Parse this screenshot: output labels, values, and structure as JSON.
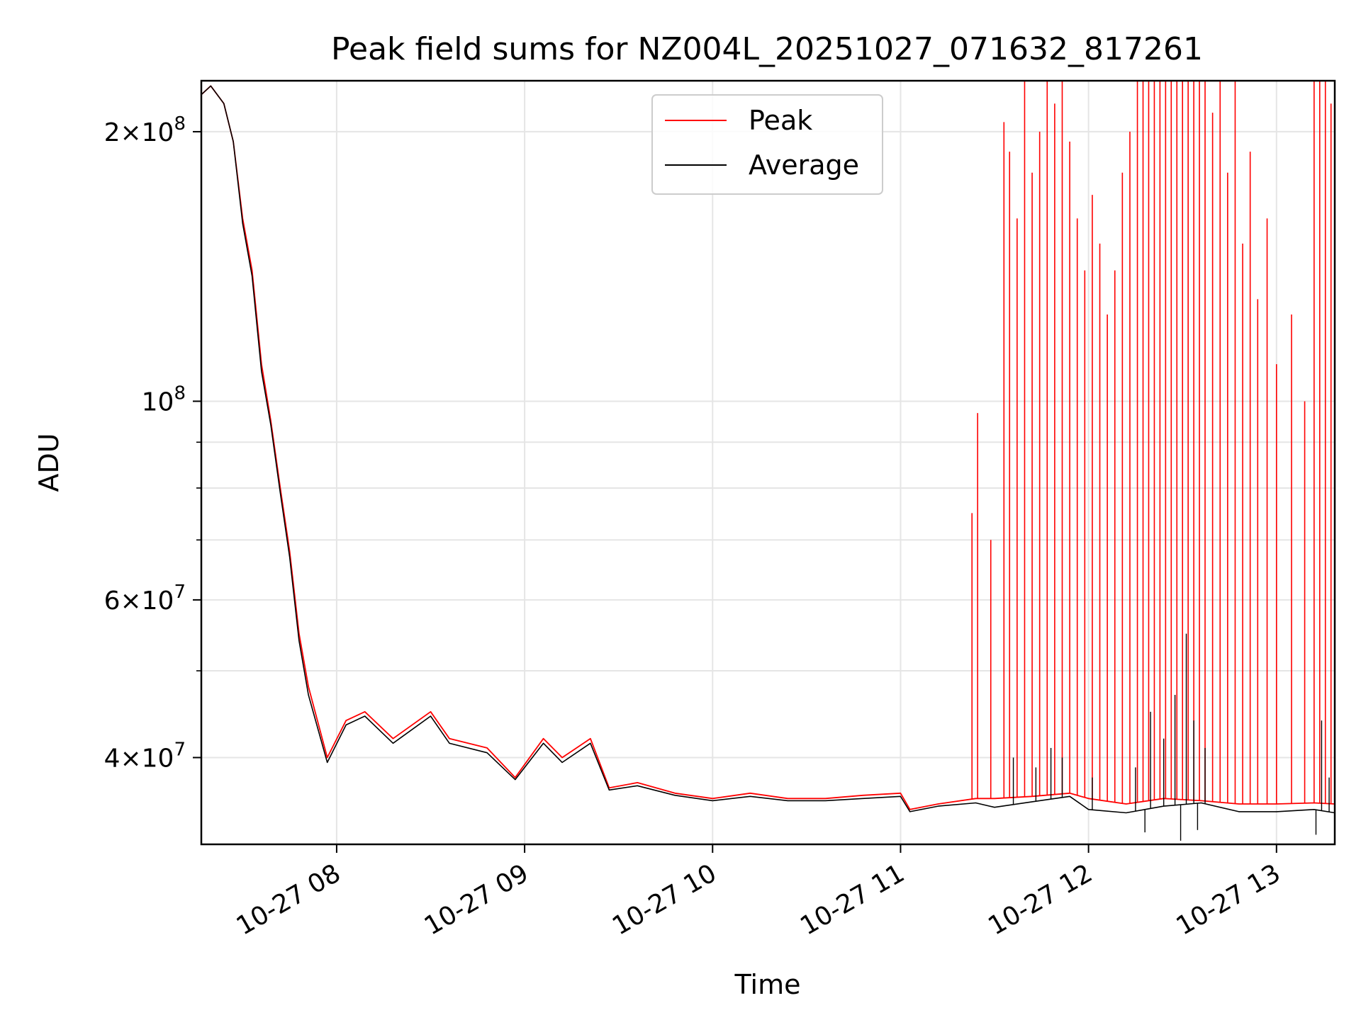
{
  "chart_data": {
    "type": "line",
    "title": "Peak field sums for NZ004L_20251027_071632_817261",
    "xlabel": "Time",
    "ylabel": "ADU",
    "yscale": "log",
    "ylim": [
      32000000,
      228000000
    ],
    "xlim_hours": [
      7.28,
      13.31
    ],
    "grid": true,
    "legend_position": "top-center",
    "x_ticks": [
      {
        "hour": 8,
        "label": "10-27 08"
      },
      {
        "hour": 9,
        "label": "10-27 09"
      },
      {
        "hour": 10,
        "label": "10-27 10"
      },
      {
        "hour": 11,
        "label": "10-27 11"
      },
      {
        "hour": 12,
        "label": "10-27 12"
      },
      {
        "hour": 13,
        "label": "10-27 13"
      }
    ],
    "y_major_ticks": [
      {
        "value": 200000000,
        "mant": "2",
        "exp": "8"
      },
      {
        "value": 100000000,
        "mant": "",
        "exp": "8"
      },
      {
        "value": 60000000,
        "mant": "6",
        "exp": "7"
      },
      {
        "value": 40000000,
        "mant": "4",
        "exp": "7"
      }
    ],
    "y_minor_ticks": [
      90000000,
      80000000,
      70000000,
      50000000
    ],
    "series": [
      {
        "name": "Peak",
        "color": "#ff0000",
        "hours": [
          7.28,
          7.33,
          7.4,
          7.45,
          7.5,
          7.55,
          7.6,
          7.65,
          7.7,
          7.75,
          7.8,
          7.85,
          7.95,
          8.05,
          8.15,
          8.3,
          8.5,
          8.6,
          8.8,
          8.95,
          9.1,
          9.2,
          9.35,
          9.45,
          9.6,
          9.8,
          10.0,
          10.2,
          10.4,
          10.6,
          10.8,
          11.0,
          11.05,
          11.2,
          11.4,
          11.5,
          11.7,
          11.9,
          12.0,
          12.2,
          12.4,
          12.6,
          12.8,
          13.0,
          13.2,
          13.31
        ],
        "values": [
          220000000,
          225000000,
          215000000,
          195000000,
          160000000,
          140000000,
          110000000,
          95000000,
          80000000,
          68000000,
          55000000,
          48000000,
          40000000,
          44000000,
          45000000,
          42000000,
          45000000,
          42000000,
          41000000,
          38000000,
          42000000,
          40000000,
          42000000,
          37000000,
          37500000,
          36500000,
          36000000,
          36500000,
          36000000,
          36000000,
          36300000,
          36500000,
          35000000,
          35500000,
          36000000,
          36000000,
          36200000,
          36500000,
          36000000,
          35500000,
          36000000,
          35800000,
          35500000,
          35500000,
          35600000,
          35500000
        ],
        "spikes": [
          {
            "hour": 11.38,
            "value": 75000000
          },
          {
            "hour": 11.41,
            "value": 97000000
          },
          {
            "hour": 11.48,
            "value": 70000000
          },
          {
            "hour": 11.55,
            "value": 205000000
          },
          {
            "hour": 11.58,
            "value": 190000000
          },
          {
            "hour": 11.62,
            "value": 160000000
          },
          {
            "hour": 11.66,
            "value": 228000000
          },
          {
            "hour": 11.7,
            "value": 180000000
          },
          {
            "hour": 11.74,
            "value": 200000000
          },
          {
            "hour": 11.78,
            "value": 228000000
          },
          {
            "hour": 11.82,
            "value": 215000000
          },
          {
            "hour": 11.86,
            "value": 228000000
          },
          {
            "hour": 11.9,
            "value": 195000000
          },
          {
            "hour": 11.94,
            "value": 160000000
          },
          {
            "hour": 11.98,
            "value": 140000000
          },
          {
            "hour": 12.02,
            "value": 170000000
          },
          {
            "hour": 12.06,
            "value": 150000000
          },
          {
            "hour": 12.1,
            "value": 125000000
          },
          {
            "hour": 12.14,
            "value": 140000000
          },
          {
            "hour": 12.18,
            "value": 180000000
          },
          {
            "hour": 12.22,
            "value": 200000000
          },
          {
            "hour": 12.26,
            "value": 228000000
          },
          {
            "hour": 12.29,
            "value": 228000000
          },
          {
            "hour": 12.32,
            "value": 228000000
          },
          {
            "hour": 12.35,
            "value": 228000000
          },
          {
            "hour": 12.38,
            "value": 228000000
          },
          {
            "hour": 12.41,
            "value": 228000000
          },
          {
            "hour": 12.44,
            "value": 228000000
          },
          {
            "hour": 12.47,
            "value": 228000000
          },
          {
            "hour": 12.5,
            "value": 228000000
          },
          {
            "hour": 12.53,
            "value": 228000000
          },
          {
            "hour": 12.56,
            "value": 228000000
          },
          {
            "hour": 12.59,
            "value": 228000000
          },
          {
            "hour": 12.62,
            "value": 228000000
          },
          {
            "hour": 12.66,
            "value": 210000000
          },
          {
            "hour": 12.7,
            "value": 228000000
          },
          {
            "hour": 12.74,
            "value": 180000000
          },
          {
            "hour": 12.78,
            "value": 228000000
          },
          {
            "hour": 12.82,
            "value": 150000000
          },
          {
            "hour": 12.86,
            "value": 190000000
          },
          {
            "hour": 12.9,
            "value": 130000000
          },
          {
            "hour": 12.95,
            "value": 160000000
          },
          {
            "hour": 13.0,
            "value": 110000000
          },
          {
            "hour": 13.08,
            "value": 125000000
          },
          {
            "hour": 13.15,
            "value": 100000000
          },
          {
            "hour": 13.2,
            "value": 228000000
          },
          {
            "hour": 13.23,
            "value": 228000000
          },
          {
            "hour": 13.26,
            "value": 228000000
          },
          {
            "hour": 13.29,
            "value": 215000000
          }
        ]
      },
      {
        "name": "Average",
        "color": "#000000",
        "hours": [
          7.28,
          7.33,
          7.4,
          7.45,
          7.5,
          7.55,
          7.6,
          7.65,
          7.7,
          7.75,
          7.8,
          7.85,
          7.95,
          8.05,
          8.15,
          8.3,
          8.5,
          8.6,
          8.8,
          8.95,
          9.1,
          9.2,
          9.35,
          9.45,
          9.6,
          9.8,
          10.0,
          10.2,
          10.4,
          10.6,
          10.8,
          11.0,
          11.05,
          11.2,
          11.4,
          11.5,
          11.7,
          11.9,
          12.0,
          12.2,
          12.4,
          12.6,
          12.8,
          13.0,
          13.2,
          13.31
        ],
        "values": [
          220000000,
          225000000,
          215000000,
          195000000,
          158000000,
          138000000,
          108000000,
          94000000,
          79000000,
          67000000,
          54000000,
          47000000,
          39500000,
          43500000,
          44500000,
          41500000,
          44500000,
          41500000,
          40500000,
          37800000,
          41500000,
          39500000,
          41500000,
          36800000,
          37200000,
          36300000,
          35800000,
          36200000,
          35800000,
          35800000,
          36000000,
          36200000,
          34800000,
          35300000,
          35600000,
          35200000,
          35700000,
          36200000,
          35000000,
          34700000,
          35300000,
          35600000,
          34800000,
          34800000,
          35000000,
          34700000
        ],
        "spikes": [
          {
            "hour": 11.6,
            "value": 40000000
          },
          {
            "hour": 11.72,
            "value": 39000000
          },
          {
            "hour": 11.8,
            "value": 41000000
          },
          {
            "hour": 11.86,
            "value": 40000000
          },
          {
            "hour": 12.02,
            "value": 38000000
          },
          {
            "hour": 12.25,
            "value": 39000000
          },
          {
            "hour": 12.33,
            "value": 45000000
          },
          {
            "hour": 12.4,
            "value": 42000000
          },
          {
            "hour": 12.46,
            "value": 47000000
          },
          {
            "hour": 12.52,
            "value": 55000000
          },
          {
            "hour": 12.56,
            "value": 44000000
          },
          {
            "hour": 12.62,
            "value": 41000000
          },
          {
            "hour": 13.24,
            "value": 44000000
          },
          {
            "hour": 13.28,
            "value": 38000000
          },
          {
            "hour": 12.3,
            "value": 33000000
          },
          {
            "hour": 12.49,
            "value": 32300000
          },
          {
            "hour": 12.58,
            "value": 33200000
          },
          {
            "hour": 13.21,
            "value": 32800000
          }
        ]
      }
    ]
  }
}
